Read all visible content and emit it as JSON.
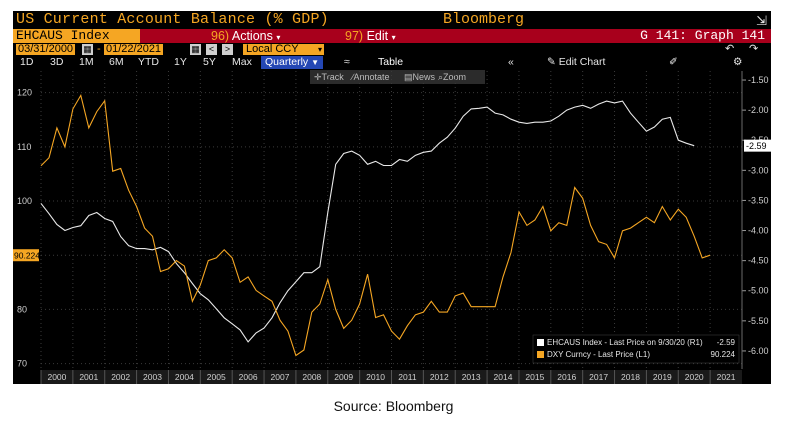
{
  "header": {
    "title": "US Current Account Balance (% GDP)",
    "brand": "Bloomberg",
    "expand_icon": "expand-icon"
  },
  "toolbar": {
    "security": "EHCAUS Index",
    "actions_num": "96)",
    "actions_label": "Actions",
    "edit_num": "97)",
    "edit_label": "Edit",
    "graph_label": "G 141: Graph 141"
  },
  "dates": {
    "start": "03/31/2000",
    "dash": "-",
    "end": "01/22/2021",
    "prev": "<",
    "next": ">",
    "currency": "Local CCY"
  },
  "periods": [
    "1D",
    "3D",
    "1M",
    "6M",
    "YTD",
    "1Y",
    "5Y",
    "Max"
  ],
  "frequency": "Quarterly",
  "table_label": "Table",
  "edit_chart_label": "Edit Chart",
  "chart_tools": {
    "track": "Track",
    "annotate": "Annotate",
    "news": "News",
    "zoom": "Zoom"
  },
  "chart_data": {
    "type": "line",
    "title": "US Current Account Balance (% GDP)",
    "x_years": [
      "2000",
      "2001",
      "2002",
      "2003",
      "2004",
      "2005",
      "2006",
      "2007",
      "2008",
      "2009",
      "2010",
      "2011",
      "2012",
      "2013",
      "2014",
      "2015",
      "2016",
      "2017",
      "2018",
      "2019",
      "2020",
      "2021"
    ],
    "left_axis": {
      "ticks": [
        70,
        80,
        90,
        100,
        110,
        120
      ],
      "range": [
        69,
        124
      ]
    },
    "right_axis": {
      "ticks": [
        "-1.50",
        "-2.00",
        "-2.50",
        "-3.00",
        "-3.50",
        "-4.00",
        "-4.50",
        "-5.00",
        "-5.50",
        "-6.00"
      ],
      "range": [
        -6.3,
        -1.35
      ]
    },
    "series": [
      {
        "name": "EHCAUS Index - Last Price on 9/30/20 (R1)",
        "last_value": "-2.59",
        "axis": "right",
        "color": "#e8e8e8",
        "points": [
          [
            2000.0,
            -3.55
          ],
          [
            2000.25,
            -3.72
          ],
          [
            2000.5,
            -3.9
          ],
          [
            2000.75,
            -4.0
          ],
          [
            2001.0,
            -3.95
          ],
          [
            2001.25,
            -3.92
          ],
          [
            2001.5,
            -3.75
          ],
          [
            2001.75,
            -3.7
          ],
          [
            2002.0,
            -3.8
          ],
          [
            2002.25,
            -3.85
          ],
          [
            2002.5,
            -4.1
          ],
          [
            2002.75,
            -4.25
          ],
          [
            2003.0,
            -4.3
          ],
          [
            2003.25,
            -4.3
          ],
          [
            2003.5,
            -4.32
          ],
          [
            2003.75,
            -4.28
          ],
          [
            2004.0,
            -4.35
          ],
          [
            2004.25,
            -4.55
          ],
          [
            2004.5,
            -4.7
          ],
          [
            2004.75,
            -4.88
          ],
          [
            2005.0,
            -5.05
          ],
          [
            2005.25,
            -5.15
          ],
          [
            2005.5,
            -5.3
          ],
          [
            2005.75,
            -5.45
          ],
          [
            2006.0,
            -5.55
          ],
          [
            2006.25,
            -5.65
          ],
          [
            2006.5,
            -5.85
          ],
          [
            2006.75,
            -5.7
          ],
          [
            2007.0,
            -5.62
          ],
          [
            2007.25,
            -5.45
          ],
          [
            2007.5,
            -5.2
          ],
          [
            2007.75,
            -5.0
          ],
          [
            2008.0,
            -4.85
          ],
          [
            2008.25,
            -4.7
          ],
          [
            2008.5,
            -4.7
          ],
          [
            2008.75,
            -4.6
          ],
          [
            2009.0,
            -3.7
          ],
          [
            2009.25,
            -2.9
          ],
          [
            2009.5,
            -2.72
          ],
          [
            2009.75,
            -2.68
          ],
          [
            2010.0,
            -2.75
          ],
          [
            2010.25,
            -2.9
          ],
          [
            2010.5,
            -2.85
          ],
          [
            2010.75,
            -2.92
          ],
          [
            2011.0,
            -2.92
          ],
          [
            2011.25,
            -2.82
          ],
          [
            2011.5,
            -2.85
          ],
          [
            2011.75,
            -2.75
          ],
          [
            2012.0,
            -2.7
          ],
          [
            2012.25,
            -2.68
          ],
          [
            2012.5,
            -2.55
          ],
          [
            2012.75,
            -2.45
          ],
          [
            2013.0,
            -2.3
          ],
          [
            2013.25,
            -2.1
          ],
          [
            2013.5,
            -1.98
          ],
          [
            2013.75,
            -1.97
          ],
          [
            2014.0,
            -1.95
          ],
          [
            2014.25,
            -2.05
          ],
          [
            2014.5,
            -2.08
          ],
          [
            2014.75,
            -2.15
          ],
          [
            2015.0,
            -2.2
          ],
          [
            2015.25,
            -2.22
          ],
          [
            2015.5,
            -2.2
          ],
          [
            2015.75,
            -2.2
          ],
          [
            2016.0,
            -2.18
          ],
          [
            2016.25,
            -2.1
          ],
          [
            2016.5,
            -2.0
          ],
          [
            2016.75,
            -1.95
          ],
          [
            2017.0,
            -1.92
          ],
          [
            2017.25,
            -1.97
          ],
          [
            2017.5,
            -1.9
          ],
          [
            2017.75,
            -1.85
          ],
          [
            2018.0,
            -1.88
          ],
          [
            2018.25,
            -1.85
          ],
          [
            2018.5,
            -2.05
          ],
          [
            2018.75,
            -2.2
          ],
          [
            2019.0,
            -2.35
          ],
          [
            2019.25,
            -2.28
          ],
          [
            2019.5,
            -2.15
          ],
          [
            2019.75,
            -2.12
          ],
          [
            2020.0,
            -2.5
          ],
          [
            2020.25,
            -2.55
          ],
          [
            2020.5,
            -2.59
          ]
        ]
      },
      {
        "name": "DXY Curncy - Last Price (L1)",
        "last_value": "90.224",
        "axis": "left",
        "color": "#f5a623",
        "points": [
          [
            2000.0,
            106.5
          ],
          [
            2000.25,
            108.0
          ],
          [
            2000.5,
            113.5
          ],
          [
            2000.75,
            110.0
          ],
          [
            2001.0,
            117.0
          ],
          [
            2001.25,
            119.5
          ],
          [
            2001.5,
            113.5
          ],
          [
            2001.75,
            116.5
          ],
          [
            2002.0,
            118.5
          ],
          [
            2002.25,
            105.5
          ],
          [
            2002.5,
            106.0
          ],
          [
            2002.75,
            102.0
          ],
          [
            2003.0,
            99.0
          ],
          [
            2003.25,
            95.0
          ],
          [
            2003.5,
            93.5
          ],
          [
            2003.75,
            87.0
          ],
          [
            2004.0,
            87.5
          ],
          [
            2004.25,
            89.0
          ],
          [
            2004.5,
            88.0
          ],
          [
            2004.75,
            81.5
          ],
          [
            2005.0,
            84.5
          ],
          [
            2005.25,
            89.0
          ],
          [
            2005.5,
            89.5
          ],
          [
            2005.75,
            91.0
          ],
          [
            2006.0,
            89.5
          ],
          [
            2006.25,
            85.0
          ],
          [
            2006.5,
            86.0
          ],
          [
            2006.75,
            83.5
          ],
          [
            2007.0,
            82.5
          ],
          [
            2007.25,
            81.5
          ],
          [
            2007.5,
            78.0
          ],
          [
            2007.75,
            76.0
          ],
          [
            2008.0,
            71.5
          ],
          [
            2008.25,
            72.5
          ],
          [
            2008.5,
            79.5
          ],
          [
            2008.75,
            81.0
          ],
          [
            2009.0,
            85.5
          ],
          [
            2009.25,
            80.0
          ],
          [
            2009.5,
            76.5
          ],
          [
            2009.75,
            78.0
          ],
          [
            2010.0,
            81.0
          ],
          [
            2010.25,
            86.5
          ],
          [
            2010.5,
            78.5
          ],
          [
            2010.75,
            79.0
          ],
          [
            2011.0,
            76.0
          ],
          [
            2011.25,
            74.5
          ],
          [
            2011.5,
            77.0
          ],
          [
            2011.75,
            79.0
          ],
          [
            2012.0,
            79.5
          ],
          [
            2012.25,
            81.5
          ],
          [
            2012.5,
            79.5
          ],
          [
            2012.75,
            79.5
          ],
          [
            2013.0,
            82.5
          ],
          [
            2013.25,
            83.0
          ],
          [
            2013.5,
            80.5
          ],
          [
            2013.75,
            80.5
          ],
          [
            2014.0,
            80.5
          ],
          [
            2014.25,
            80.5
          ],
          [
            2014.5,
            86.0
          ],
          [
            2014.75,
            90.5
          ],
          [
            2015.0,
            98.0
          ],
          [
            2015.25,
            95.5
          ],
          [
            2015.5,
            96.5
          ],
          [
            2015.75,
            99.0
          ],
          [
            2016.0,
            94.5
          ],
          [
            2016.25,
            96.0
          ],
          [
            2016.5,
            95.5
          ],
          [
            2016.75,
            102.5
          ],
          [
            2017.0,
            100.5
          ],
          [
            2017.25,
            95.5
          ],
          [
            2017.5,
            92.5
          ],
          [
            2017.75,
            92.0
          ],
          [
            2018.0,
            89.5
          ],
          [
            2018.25,
            94.5
          ],
          [
            2018.5,
            95.0
          ],
          [
            2018.75,
            96.0
          ],
          [
            2019.0,
            97.0
          ],
          [
            2019.25,
            96.0
          ],
          [
            2019.5,
            99.0
          ],
          [
            2019.75,
            96.5
          ],
          [
            2020.0,
            98.5
          ],
          [
            2020.25,
            97.0
          ],
          [
            2020.5,
            93.5
          ],
          [
            2020.75,
            89.5
          ],
          [
            2021.0,
            90.0
          ]
        ]
      }
    ],
    "legend": [
      {
        "label": "EHCAUS Index - Last Price on 9/30/20 (R1)",
        "value": "-2.59",
        "color": "#ffffff"
      },
      {
        "label": "DXY Curncy - Last Price (L1)",
        "value": "90.224",
        "color": "#f5a623"
      }
    ],
    "legend_position": "bottom-right",
    "grid": true
  },
  "caption": "Source: Bloomberg"
}
